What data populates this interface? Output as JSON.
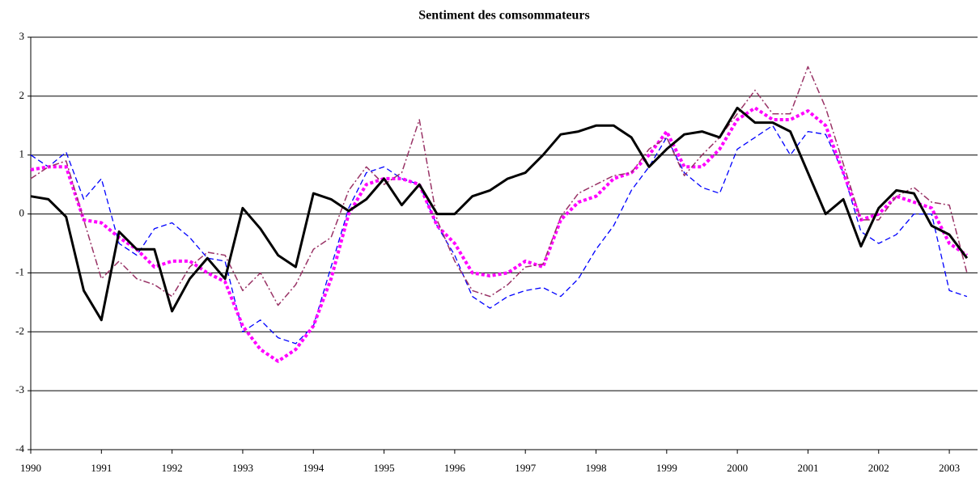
{
  "chart_data": {
    "type": "line",
    "title": "Sentiment des comsommateurs",
    "x": [
      1990,
      1990.25,
      1990.5,
      1990.75,
      1991,
      1991.25,
      1991.5,
      1991.75,
      1992,
      1992.25,
      1992.5,
      1992.75,
      1993,
      1993.25,
      1993.5,
      1993.75,
      1994,
      1994.25,
      1994.5,
      1994.75,
      1995,
      1995.25,
      1995.5,
      1995.75,
      1996,
      1996.25,
      1996.5,
      1996.75,
      1997,
      1997.25,
      1997.5,
      1997.75,
      1998,
      1998.25,
      1998.5,
      1998.75,
      1999,
      1999.25,
      1999.5,
      1999.75,
      2000,
      2000.25,
      2000.5,
      2000.75,
      2001,
      2001.25,
      2001.5,
      2001.75,
      2002,
      2002.25,
      2002.5,
      2002.75,
      2003,
      2003.25
    ],
    "series": [
      {
        "color": "#0000ff",
        "style": "dashed",
        "values": [
          1.0,
          0.8,
          1.05,
          0.25,
          0.6,
          -0.5,
          -0.7,
          -0.25,
          -0.15,
          -0.4,
          -0.75,
          -0.8,
          -2.0,
          -1.8,
          -2.1,
          -2.2,
          -1.9,
          -0.9,
          0.1,
          0.7,
          0.8,
          0.6,
          0.5,
          -0.2,
          -0.7,
          -1.4,
          -1.6,
          -1.4,
          -1.3,
          -1.25,
          -1.4,
          -1.1,
          -0.6,
          -0.2,
          0.4,
          0.8,
          1.3,
          0.7,
          0.45,
          0.35,
          1.1,
          1.3,
          1.5,
          1.0,
          1.4,
          1.35,
          0.7,
          -0.3,
          -0.5,
          -0.35,
          0.0,
          0.0,
          -1.3,
          -1.4
        ]
      },
      {
        "color": "#ff00ff",
        "style": "dotted",
        "values": [
          0.75,
          0.8,
          0.8,
          -0.1,
          -0.15,
          -0.4,
          -0.6,
          -0.9,
          -0.8,
          -0.8,
          -1.0,
          -1.15,
          -1.9,
          -2.3,
          -2.5,
          -2.3,
          -1.9,
          -1.1,
          0.0,
          0.5,
          0.6,
          0.6,
          0.5,
          -0.2,
          -0.5,
          -1.0,
          -1.05,
          -1.0,
          -0.8,
          -0.9,
          -0.1,
          0.2,
          0.3,
          0.6,
          0.7,
          1.0,
          1.4,
          0.8,
          0.8,
          1.1,
          1.6,
          1.8,
          1.6,
          1.6,
          1.75,
          1.5,
          0.7,
          -0.1,
          0.0,
          0.3,
          0.2,
          0.1,
          -0.5,
          -0.7
        ]
      },
      {
        "color": "#993366",
        "style": "dashdot",
        "values": [
          0.6,
          0.8,
          0.9,
          -0.1,
          -1.1,
          -0.8,
          -1.1,
          -1.2,
          -1.4,
          -0.9,
          -0.65,
          -0.7,
          -1.3,
          -1.0,
          -1.55,
          -1.2,
          -0.6,
          -0.4,
          0.4,
          0.8,
          0.5,
          0.7,
          1.6,
          -0.1,
          -0.8,
          -1.3,
          -1.4,
          -1.2,
          -0.9,
          -0.85,
          -0.05,
          0.35,
          0.5,
          0.65,
          0.7,
          1.1,
          1.3,
          0.65,
          1.0,
          1.3,
          1.7,
          2.1,
          1.7,
          1.7,
          2.5,
          1.8,
          0.85,
          -0.1,
          -0.1,
          0.3,
          0.45,
          0.2,
          0.15,
          -1.0
        ]
      },
      {
        "color": "#000000",
        "style": "solid",
        "values": [
          0.3,
          0.25,
          -0.05,
          -1.3,
          -1.8,
          -0.3,
          -0.6,
          -0.6,
          -1.65,
          -1.1,
          -0.75,
          -1.1,
          0.1,
          -0.25,
          -0.7,
          -0.9,
          0.35,
          0.25,
          0.05,
          0.25,
          0.6,
          0.15,
          0.5,
          0.0,
          0.0,
          0.3,
          0.4,
          0.6,
          0.7,
          1.0,
          1.35,
          1.4,
          1.5,
          1.5,
          1.3,
          0.8,
          1.1,
          1.35,
          1.4,
          1.3,
          1.8,
          1.55,
          1.55,
          1.4,
          0.7,
          0.0,
          0.25,
          -0.55,
          0.1,
          0.4,
          0.35,
          -0.2,
          -0.35,
          -0.75
        ]
      }
    ],
    "xlim": [
      1990,
      2003.4
    ],
    "xticks": [
      1990,
      1991,
      1992,
      1993,
      1994,
      1995,
      1996,
      1997,
      1998,
      1999,
      2000,
      2001,
      2002,
      2003
    ],
    "ylim": [
      -4,
      3
    ],
    "yticks": [
      -4,
      -3,
      -2,
      -1,
      0,
      1,
      2,
      3
    ],
    "grid": true
  }
}
